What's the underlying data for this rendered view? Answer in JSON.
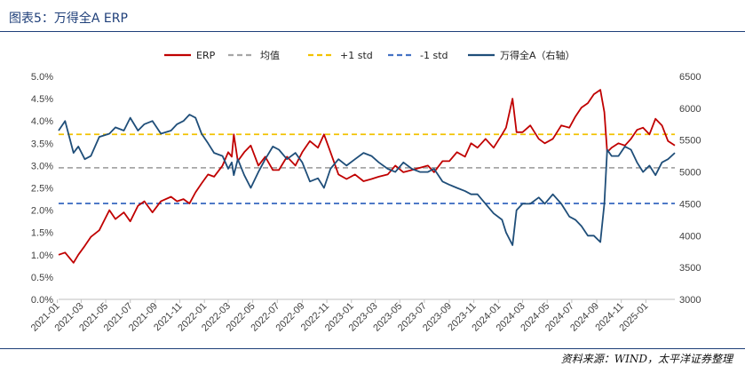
{
  "header": {
    "title": "图表5：万得全A ERP"
  },
  "footer": {
    "source": "资料来源：WIND，太平洋证券整理"
  },
  "colors": {
    "erp": "#c00000",
    "mean": "#a6a6a6",
    "plus_std": "#f2c200",
    "minus_std": "#4472c4",
    "index": "#1f4e79",
    "rule": "#1f3f79"
  },
  "chart_data": {
    "type": "line",
    "title": "",
    "x_ticks": [
      "2021-01",
      "2021-03",
      "2021-05",
      "2021-07",
      "2021-09",
      "2021-11",
      "2022-01",
      "2022-03",
      "2022-05",
      "2022-07",
      "2022-09",
      "2022-11",
      "2023-01",
      "2023-03",
      "2023-05",
      "2023-07",
      "2023-09",
      "2023-11",
      "2024-01",
      "2024-03",
      "2024-05",
      "2024-07",
      "2024-09",
      "2024-11",
      "2025-01"
    ],
    "x_range": [
      "2021-01-04",
      "2025-03-14"
    ],
    "y_left": {
      "ticks": [
        "0.0%",
        "0.5%",
        "1.0%",
        "1.5%",
        "2.0%",
        "2.5%",
        "3.0%",
        "3.5%",
        "4.0%",
        "4.5%",
        "5.0%"
      ],
      "range": [
        0,
        5.0
      ],
      "unit": "%"
    },
    "y_right": {
      "ticks": [
        "3000",
        "3500",
        "4000",
        "4500",
        "5000",
        "5500",
        "6000",
        "6500"
      ],
      "range": [
        3000,
        6500
      ]
    },
    "legend": [
      "ERP",
      "均值",
      "+1 std",
      "-1 std",
      "万得全A（右轴）"
    ],
    "legend_position": "top",
    "reference_lines": {
      "mean": 2.95,
      "plus_1_std": 3.7,
      "minus_1_std": 2.15
    },
    "series": [
      {
        "name": "ERP",
        "axis": "left",
        "color": "#c00000",
        "x": [
          "2021-01-04",
          "2021-01-20",
          "2021-02-10",
          "2021-02-22",
          "2021-03-10",
          "2021-03-25",
          "2021-04-15",
          "2021-05-10",
          "2021-05-25",
          "2021-06-15",
          "2021-07-01",
          "2021-07-20",
          "2021-08-05",
          "2021-08-25",
          "2021-09-15",
          "2021-10-10",
          "2021-10-25",
          "2021-11-10",
          "2021-11-25",
          "2021-12-10",
          "2021-12-25",
          "2022-01-10",
          "2022-01-25",
          "2022-02-15",
          "2022-03-01",
          "2022-03-10",
          "2022-03-15",
          "2022-03-25",
          "2022-04-10",
          "2022-04-26",
          "2022-05-15",
          "2022-06-01",
          "2022-06-20",
          "2022-07-05",
          "2022-07-25",
          "2022-08-15",
          "2022-09-01",
          "2022-09-20",
          "2022-10-10",
          "2022-10-25",
          "2022-11-10",
          "2022-11-30",
          "2022-12-20",
          "2023-01-10",
          "2023-01-31",
          "2023-02-20",
          "2023-03-10",
          "2023-04-01",
          "2023-04-20",
          "2023-05-10",
          "2023-05-31",
          "2023-06-20",
          "2023-07-10",
          "2023-07-25",
          "2023-08-15",
          "2023-09-01",
          "2023-09-20",
          "2023-10-10",
          "2023-10-25",
          "2023-11-10",
          "2023-11-30",
          "2023-12-20",
          "2024-01-10",
          "2024-01-20",
          "2024-02-05",
          "2024-02-15",
          "2024-03-01",
          "2024-03-20",
          "2024-04-10",
          "2024-04-25",
          "2024-05-15",
          "2024-06-05",
          "2024-06-25",
          "2024-07-10",
          "2024-07-25",
          "2024-08-10",
          "2024-08-25",
          "2024-09-10",
          "2024-09-20",
          "2024-09-27",
          "2024-10-08",
          "2024-10-25",
          "2024-11-10",
          "2024-11-25",
          "2024-12-10",
          "2024-12-25",
          "2025-01-10",
          "2025-01-25",
          "2025-02-10",
          "2025-02-25",
          "2025-03-14"
        ],
        "values": [
          1.0,
          1.05,
          0.82,
          1.0,
          1.2,
          1.4,
          1.55,
          2.0,
          1.8,
          1.95,
          1.75,
          2.1,
          2.2,
          1.95,
          2.2,
          2.3,
          2.2,
          2.25,
          2.15,
          2.4,
          2.6,
          2.8,
          2.75,
          3.0,
          3.3,
          3.2,
          3.7,
          3.1,
          3.3,
          3.45,
          3.0,
          3.2,
          2.9,
          2.9,
          3.2,
          3.0,
          3.3,
          3.55,
          3.4,
          3.7,
          3.3,
          2.8,
          2.7,
          2.8,
          2.65,
          2.7,
          2.75,
          2.8,
          3.0,
          2.85,
          2.9,
          2.95,
          3.0,
          2.85,
          3.1,
          3.1,
          3.3,
          3.2,
          3.5,
          3.4,
          3.6,
          3.4,
          3.7,
          3.85,
          4.5,
          3.75,
          3.75,
          3.9,
          3.6,
          3.5,
          3.6,
          3.9,
          3.85,
          4.1,
          4.3,
          4.4,
          4.6,
          4.7,
          4.2,
          3.3,
          3.4,
          3.5,
          3.45,
          3.6,
          3.8,
          3.85,
          3.7,
          4.05,
          3.9,
          3.55,
          3.45
        ]
      },
      {
        "name": "万得全A（右轴）",
        "axis": "right",
        "color": "#1f4e79",
        "x": [
          "2021-01-04",
          "2021-01-20",
          "2021-02-10",
          "2021-02-22",
          "2021-03-10",
          "2021-03-25",
          "2021-04-15",
          "2021-05-10",
          "2021-05-25",
          "2021-06-15",
          "2021-07-01",
          "2021-07-20",
          "2021-08-05",
          "2021-08-25",
          "2021-09-15",
          "2021-10-10",
          "2021-10-25",
          "2021-11-10",
          "2021-11-25",
          "2021-12-10",
          "2021-12-25",
          "2022-01-10",
          "2022-01-25",
          "2022-02-15",
          "2022-03-01",
          "2022-03-10",
          "2022-03-15",
          "2022-03-25",
          "2022-04-10",
          "2022-04-26",
          "2022-05-15",
          "2022-06-01",
          "2022-06-20",
          "2022-07-05",
          "2022-07-25",
          "2022-08-15",
          "2022-09-01",
          "2022-09-20",
          "2022-10-10",
          "2022-10-25",
          "2022-11-10",
          "2022-11-30",
          "2022-12-20",
          "2023-01-10",
          "2023-01-31",
          "2023-02-20",
          "2023-03-10",
          "2023-04-01",
          "2023-04-20",
          "2023-05-10",
          "2023-05-31",
          "2023-06-20",
          "2023-07-10",
          "2023-07-25",
          "2023-08-15",
          "2023-09-01",
          "2023-09-20",
          "2023-10-10",
          "2023-10-25",
          "2023-11-10",
          "2023-11-30",
          "2023-12-20",
          "2024-01-10",
          "2024-01-20",
          "2024-02-05",
          "2024-02-15",
          "2024-03-01",
          "2024-03-20",
          "2024-04-10",
          "2024-04-25",
          "2024-05-15",
          "2024-06-05",
          "2024-06-25",
          "2024-07-10",
          "2024-07-25",
          "2024-08-10",
          "2024-08-25",
          "2024-09-10",
          "2024-09-20",
          "2024-09-27",
          "2024-10-08",
          "2024-10-25",
          "2024-11-10",
          "2024-11-25",
          "2024-12-10",
          "2024-12-25",
          "2025-01-10",
          "2025-01-25",
          "2025-02-10",
          "2025-02-25",
          "2025-03-14"
        ],
        "values": [
          5650,
          5800,
          5300,
          5400,
          5200,
          5250,
          5550,
          5600,
          5700,
          5650,
          5850,
          5650,
          5750,
          5800,
          5600,
          5650,
          5750,
          5800,
          5900,
          5850,
          5600,
          5450,
          5300,
          5250,
          5050,
          5150,
          4950,
          5200,
          4950,
          4750,
          5000,
          5200,
          5400,
          5350,
          5200,
          5300,
          5150,
          4850,
          4900,
          4750,
          5050,
          5200,
          5100,
          5200,
          5300,
          5250,
          5150,
          5050,
          5000,
          5150,
          5050,
          5000,
          5000,
          5050,
          4850,
          4800,
          4750,
          4700,
          4650,
          4650,
          4500,
          4350,
          4250,
          4050,
          3850,
          4400,
          4500,
          4500,
          4600,
          4500,
          4650,
          4500,
          4300,
          4250,
          4150,
          4000,
          4000,
          3900,
          4500,
          5350,
          5250,
          5250,
          5400,
          5350,
          5150,
          5000,
          5100,
          4950,
          5150,
          5200,
          5300
        ]
      }
    ]
  }
}
